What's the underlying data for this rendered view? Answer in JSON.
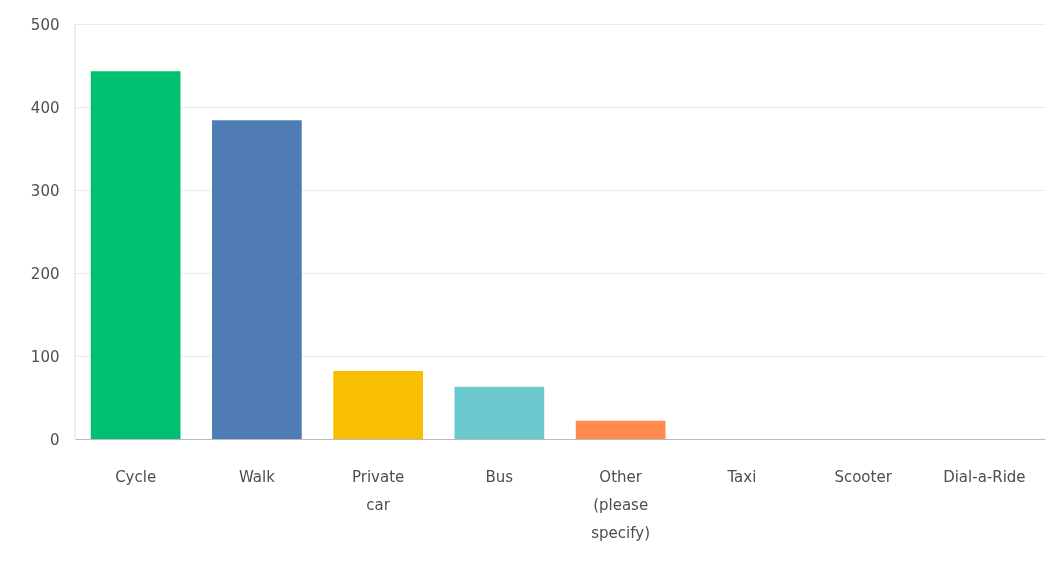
{
  "chart_data": {
    "type": "bar",
    "categories": [
      "Cycle",
      "Walk",
      "Private car",
      "Bus",
      "Other (please specify)",
      "Taxi",
      "Scooter",
      "Dial-a-Ride"
    ],
    "values": [
      443,
      384,
      82,
      63,
      22,
      0,
      0,
      0
    ],
    "colors": [
      "#00bf6f",
      "#507cb6",
      "#f9be00",
      "#6bc8cd",
      "#ff8b4f",
      null,
      null,
      null
    ],
    "ylim": [
      0,
      500
    ],
    "yticks": [
      0,
      100,
      200,
      300,
      400,
      500
    ],
    "grid": "y"
  }
}
